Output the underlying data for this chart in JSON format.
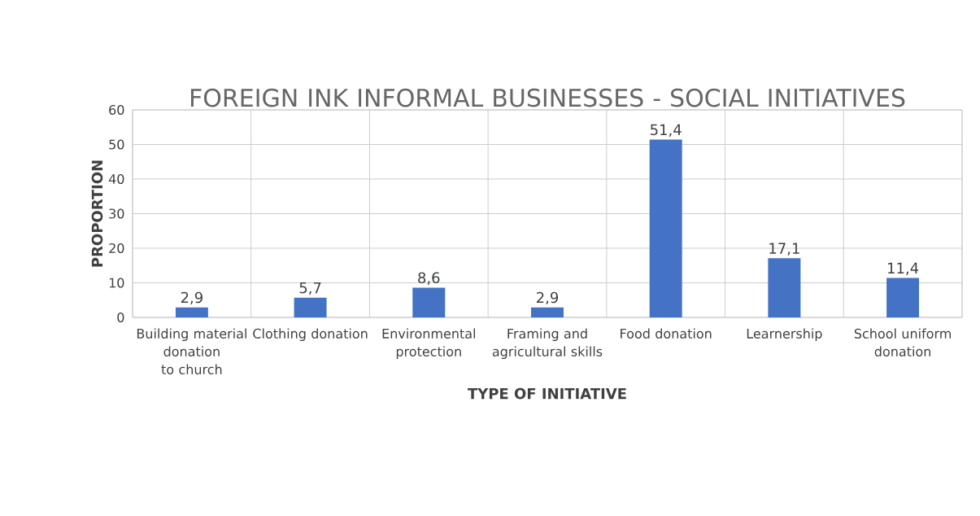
{
  "chart_data": {
    "type": "bar",
    "title": "FOREIGN INK INFORMAL BUSINESSES - SOCIAL INITIATIVES",
    "xlabel": "TYPE OF INITIATIVE",
    "ylabel": "PROPORTION",
    "categories": [
      "Building material donation to church",
      "Clothing donation",
      "Environmental protection",
      "Framing and agricultural skills",
      "Food donation",
      "Learnership",
      "School uniform donation"
    ],
    "values": [
      2.9,
      5.7,
      8.6,
      2.9,
      51.4,
      17.1,
      11.4
    ],
    "value_labels": [
      "2,9",
      "5,7",
      "8,6",
      "2,9",
      "51,4",
      "17,1",
      "11,4"
    ],
    "color": "#4472c4",
    "ylim": [
      0,
      60
    ],
    "yticks": [
      0,
      10,
      20,
      30,
      40,
      50,
      60
    ],
    "grid": true
  }
}
